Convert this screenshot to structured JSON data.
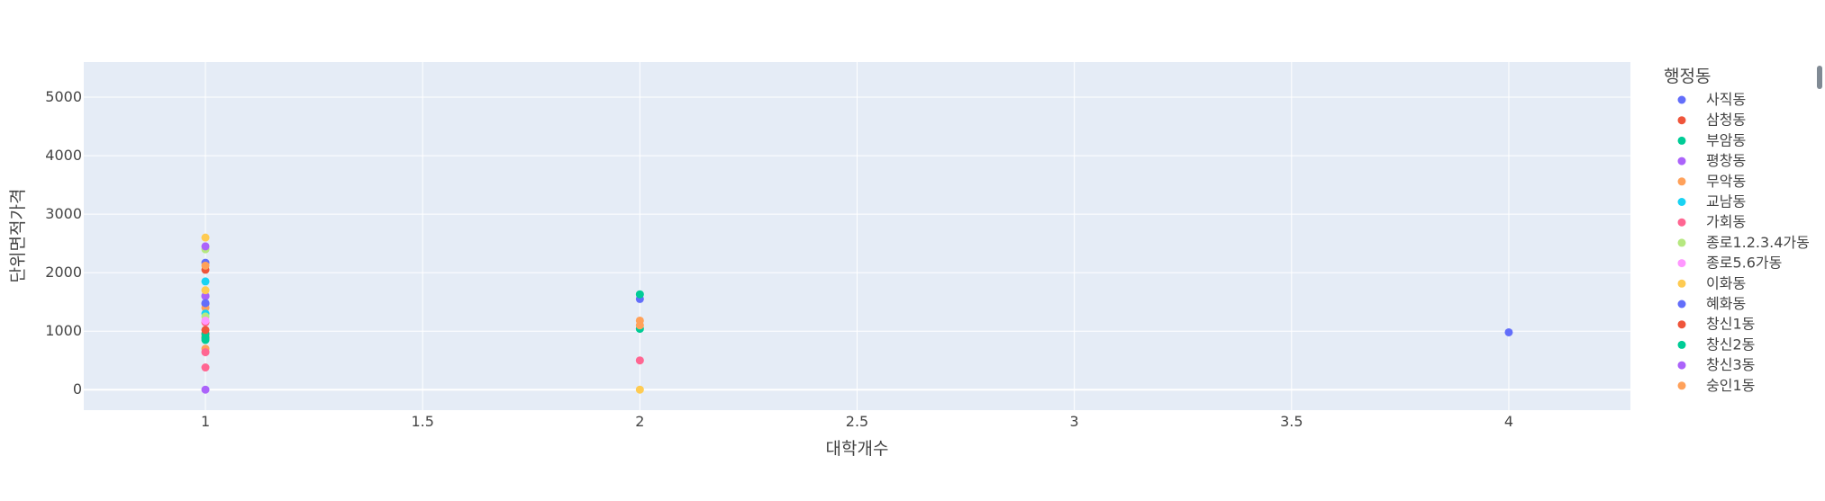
{
  "chart_data": {
    "type": "scatter",
    "xlabel": "대학개수",
    "ylabel": "단위면적가격",
    "x_ticks": [
      "1",
      "1.5",
      "2",
      "2.5",
      "3",
      "3.5",
      "4"
    ],
    "y_ticks": [
      "0",
      "1000",
      "2000",
      "3000",
      "4000",
      "5000"
    ],
    "x_tick_values": [
      1,
      1.5,
      2,
      2.5,
      3,
      3.5,
      4
    ],
    "y_tick_values": [
      0,
      1000,
      2000,
      3000,
      4000,
      5000
    ],
    "xlim": [
      0.72,
      4.28
    ],
    "ylim": [
      -350,
      5600
    ],
    "grid": true,
    "legend_title": "행정동",
    "legend_position": "right",
    "colors": {
      "plot_background": "#e5ecf6",
      "grid": "#ffffff",
      "text": "#444444",
      "scrollbar": "#808a94"
    },
    "series": [
      {
        "name": "사직동",
        "color": "#636efa",
        "x": [
          1,
          1,
          1
        ],
        "y": [
          2170,
          1600,
          1470
        ]
      },
      {
        "name": "삼청동",
        "color": "#EF553B",
        "x": [
          1,
          1,
          1
        ],
        "y": [
          2050,
          960,
          900
        ]
      },
      {
        "name": "부암동",
        "color": "#00cc96",
        "x": [
          1,
          1,
          2
        ],
        "y": [
          950,
          850,
          1040
        ]
      },
      {
        "name": "평창동",
        "color": "#ab63fa",
        "x": [
          1,
          1
        ],
        "y": [
          1600,
          0
        ]
      },
      {
        "name": "무악동",
        "color": "#FFA15A",
        "x": [
          1,
          1,
          2
        ],
        "y": [
          1400,
          700,
          1180
        ]
      },
      {
        "name": "교남동",
        "color": "#19d3f3",
        "x": [
          1,
          1
        ],
        "y": [
          1850,
          1300
        ]
      },
      {
        "name": "가회동",
        "color": "#FF6692",
        "x": [
          1,
          1,
          1,
          2
        ],
        "y": [
          1150,
          640,
          380,
          500
        ]
      },
      {
        "name": "종로1.2.3.4가동",
        "color": "#B6E880",
        "x": [
          1,
          1
        ],
        "y": [
          2400,
          1250
        ]
      },
      {
        "name": "종로5.6가동",
        "color": "#FF97FF",
        "x": [
          1
        ],
        "y": [
          1180
        ]
      },
      {
        "name": "이화동",
        "color": "#FECB52",
        "x": [
          1,
          1,
          2
        ],
        "y": [
          2600,
          1700,
          0
        ]
      },
      {
        "name": "혜화동",
        "color": "#636efa",
        "x": [
          1,
          2,
          4
        ],
        "y": [
          1480,
          1550,
          980
        ]
      },
      {
        "name": "창신1동",
        "color": "#EF553B",
        "x": [
          1
        ],
        "y": [
          1020
        ]
      },
      {
        "name": "창신2동",
        "color": "#00cc96",
        "x": [
          1,
          2
        ],
        "y": [
          880,
          1630
        ]
      },
      {
        "name": "창신3동",
        "color": "#ab63fa",
        "x": [
          1
        ],
        "y": [
          2450
        ]
      },
      {
        "name": "숭인1동",
        "color": "#FFA15A",
        "x": [
          1,
          2
        ],
        "y": [
          2120,
          1100
        ]
      }
    ]
  }
}
